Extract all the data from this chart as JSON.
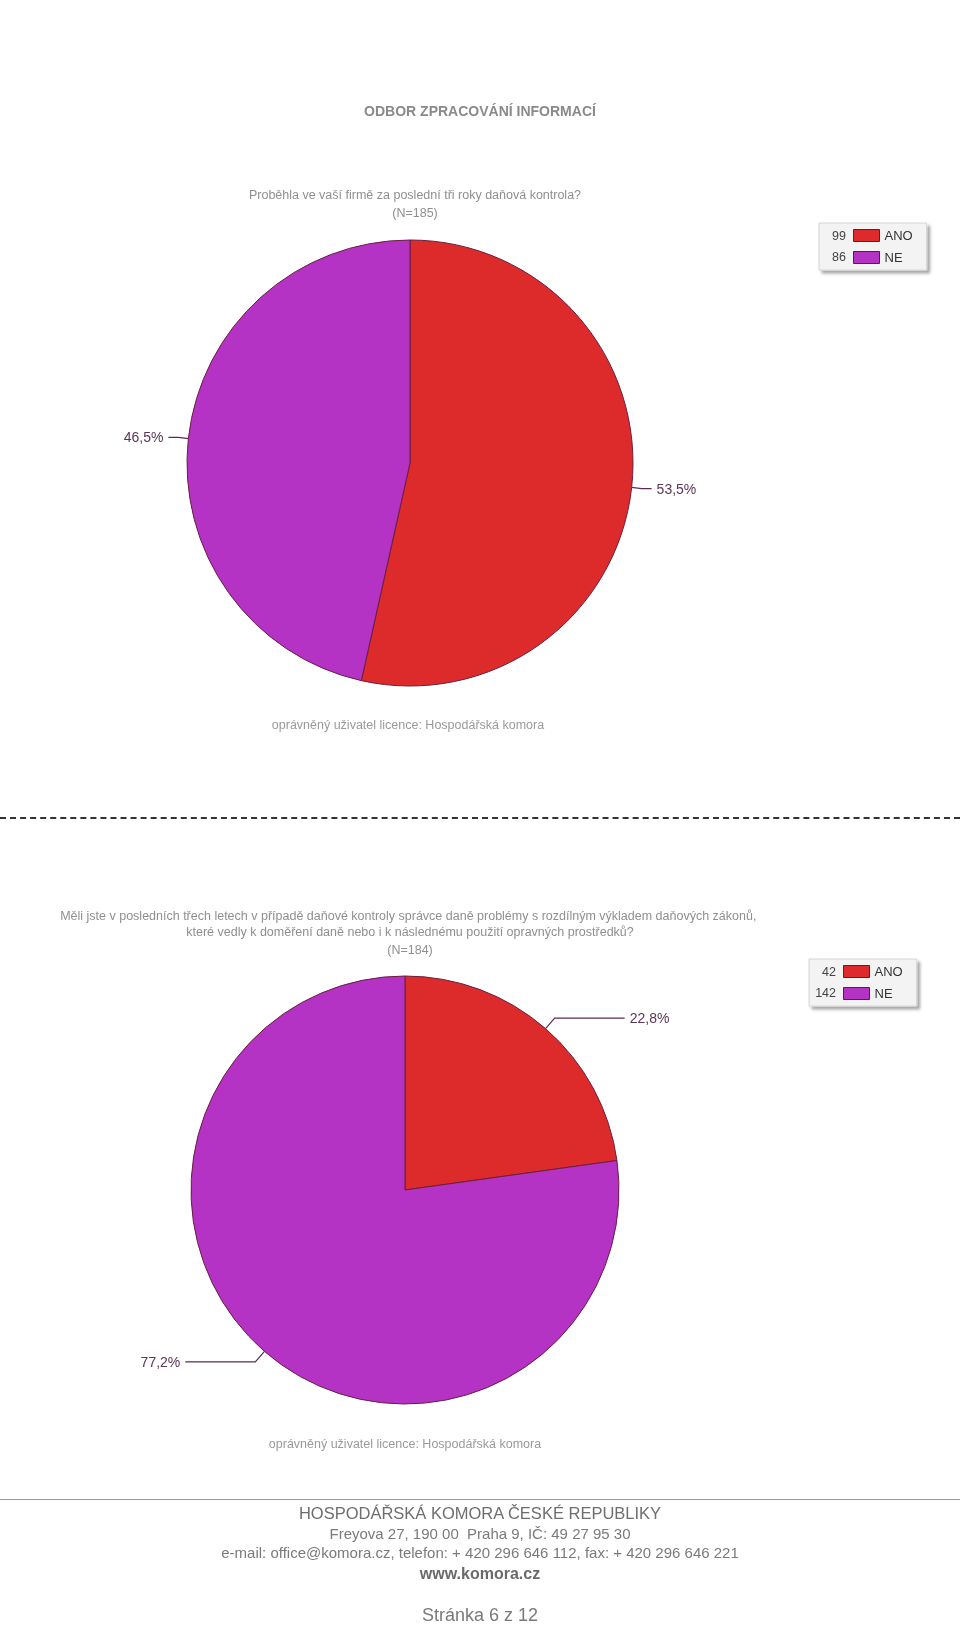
{
  "chart_data": [
    {
      "type": "pie",
      "title": "Proběhla ve vaší firmě za poslední tři roky daňová kontrola?",
      "subtitle": "(N=185)",
      "categories": [
        "ANO",
        "NE"
      ],
      "values": [
        53.5,
        46.5
      ],
      "colors": [
        "#dd2b2b",
        "#b432c4"
      ],
      "value_labels": [
        "53,5%",
        "46,5%"
      ],
      "legend": "top right",
      "annotations": [
        "ODBOR ZPRACOVÁNÍ INFORMACÍ",
        "oprávněný uživatel licence: Hospodářská komora",
        {
          "text": "99",
          "x": "ANO"
        },
        {
          "text": "86",
          "x": "NE"
        }
      ]
    },
    {
      "type": "pie",
      "title": "Měli jste v posledních třech letech v případě daňové kontroly správce daně problémy s rozdílným výkladem daňových zákonů, které vedly k doměření daně nebo i k následnému použití opravných prostředků?",
      "subtitle": "(N=184)",
      "categories": [
        "ANO",
        "NE"
      ],
      "values": [
        22.8,
        77.2
      ],
      "colors": [
        "#dd2b2b",
        "#b432c4"
      ],
      "value_labels": [
        "22,8%",
        "77,2%"
      ],
      "legend": "top right",
      "annotations": [
        "oprávněný uživatel licence: Hospodářská komora",
        "HOSPODÁŘSKÁ KOMORA ČESKÉ REPUBLIKY",
        "Freyova 27, 190 00  Praha 9, IČ: 49 27 95 30",
        "e-mail: office@komora.cz, telefon: + 420 296 646 112, fax: + 420 296 646 221",
        "www.komora.cz",
        "Stránka 6 z 12",
        {
          "text": "42",
          "x": "ANO"
        },
        {
          "text": "142",
          "x": "NE"
        }
      ]
    }
  ]
}
